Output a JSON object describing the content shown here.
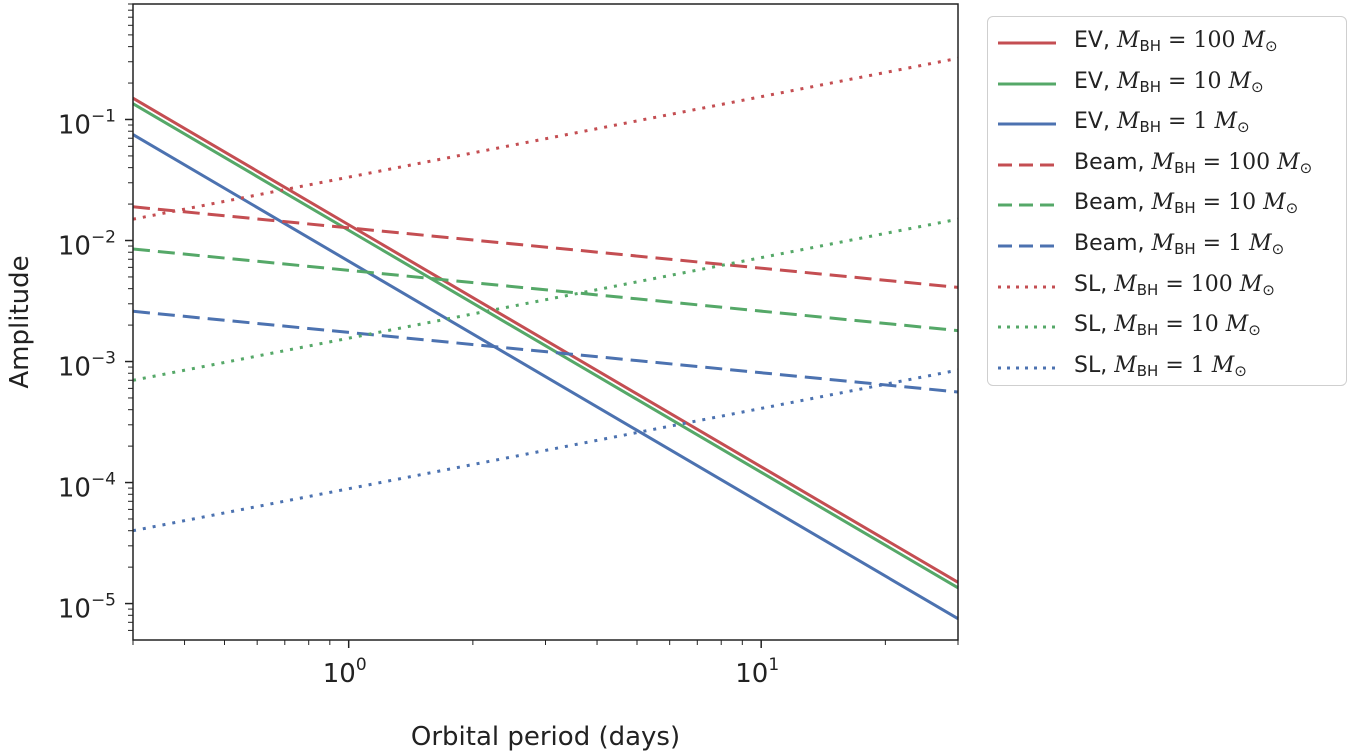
{
  "chart_data": {
    "type": "line",
    "xscale": "log",
    "yscale": "log",
    "xlabel": "Orbital period (days)",
    "ylabel": "Amplitude",
    "xlim": [
      0.3,
      30
    ],
    "ylim": [
      5e-06,
      0.9
    ],
    "x_ticks": [
      {
        "base": "10",
        "exp": "0"
      },
      {
        "base": "10",
        "exp": "1"
      }
    ],
    "y_ticks": [
      {
        "base": "10",
        "exp": "−5"
      },
      {
        "base": "10",
        "exp": "−4"
      },
      {
        "base": "10",
        "exp": "−3"
      },
      {
        "base": "10",
        "exp": "−2"
      },
      {
        "base": "10",
        "exp": "−1"
      }
    ],
    "grid": false,
    "legend_position": "outside-right",
    "series": [
      {
        "name": "EV, M_BH = 100 M⊙",
        "label_prefix": "EV, ",
        "mass": "100",
        "style": "solid",
        "color": "#c44e52",
        "x": [
          0.3,
          30
        ],
        "y": [
          0.15,
          1.5e-05
        ]
      },
      {
        "name": "EV, M_BH = 10 M⊙",
        "label_prefix": "EV, ",
        "mass": "10",
        "style": "solid",
        "color": "#55a868",
        "x": [
          0.3,
          30
        ],
        "y": [
          0.135,
          1.35e-05
        ]
      },
      {
        "name": "EV, M_BH = 1 M⊙",
        "label_prefix": "EV, ",
        "mass": "1",
        "style": "solid",
        "color": "#4c72b0",
        "x": [
          0.3,
          30
        ],
        "y": [
          0.075,
          7.5e-06
        ]
      },
      {
        "name": "Beam, M_BH = 100 M⊙",
        "label_prefix": "Beam, ",
        "mass": "100",
        "style": "dashed",
        "color": "#c44e52",
        "x": [
          0.3,
          30
        ],
        "y": [
          0.019,
          0.0041
        ]
      },
      {
        "name": "Beam, M_BH = 10 M⊙",
        "label_prefix": "Beam, ",
        "mass": "10",
        "style": "dashed",
        "color": "#55a868",
        "x": [
          0.3,
          30
        ],
        "y": [
          0.0085,
          0.0018
        ]
      },
      {
        "name": "Beam, M_BH = 1 M⊙",
        "label_prefix": "Beam, ",
        "mass": "1",
        "style": "dashed",
        "color": "#4c72b0",
        "x": [
          0.3,
          30
        ],
        "y": [
          0.0026,
          0.00056
        ]
      },
      {
        "name": "SL, M_BH = 100 M⊙",
        "label_prefix": "SL, ",
        "mass": "100",
        "style": "dotted",
        "color": "#c44e52",
        "x": [
          0.3,
          30
        ],
        "y": [
          0.015,
          0.32
        ]
      },
      {
        "name": "SL, M_BH = 10 M⊙",
        "label_prefix": "SL, ",
        "mass": "10",
        "style": "dotted",
        "color": "#55a868",
        "x": [
          0.3,
          30
        ],
        "y": [
          0.0007,
          0.015
        ]
      },
      {
        "name": "SL, M_BH = 1 M⊙",
        "label_prefix": "SL, ",
        "mass": "1",
        "style": "dotted",
        "color": "#4c72b0",
        "x": [
          0.3,
          30
        ],
        "y": [
          4e-05,
          0.00085
        ]
      }
    ]
  }
}
